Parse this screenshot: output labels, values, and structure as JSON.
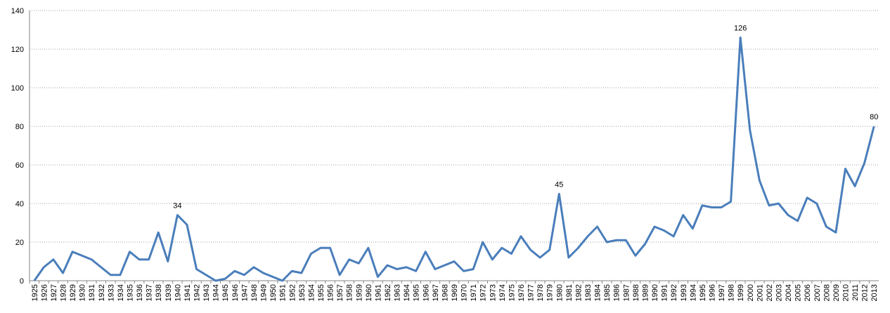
{
  "chart_data": {
    "type": "line",
    "categories": [
      "1925",
      "1926",
      "1927",
      "1928",
      "1929",
      "1930",
      "1931",
      "1932",
      "1933",
      "1934",
      "1935",
      "1936",
      "1937",
      "1938",
      "1939",
      "1940",
      "1941",
      "1942",
      "1943",
      "1944",
      "1945",
      "1946",
      "1947",
      "1948",
      "1949",
      "1950",
      "1951",
      "1952",
      "1953",
      "1954",
      "1955",
      "1956",
      "1957",
      "1958",
      "1959",
      "1960",
      "1961",
      "1962",
      "1963",
      "1964",
      "1965",
      "1966",
      "1967",
      "1968",
      "1969",
      "1970",
      "1971",
      "1972",
      "1973",
      "1974",
      "1975",
      "1976",
      "1977",
      "1978",
      "1979",
      "1980",
      "1981",
      "1982",
      "1983",
      "1984",
      "1985",
      "1986",
      "1987",
      "1988",
      "1989",
      "1990",
      "1991",
      "1992",
      "1993",
      "1994",
      "1995",
      "1996",
      "1997",
      "1998",
      "1999",
      "2000",
      "2001",
      "2002",
      "2003",
      "2004",
      "2005",
      "2006",
      "2007",
      "2008",
      "2009",
      "2010",
      "2011",
      "2012",
      "2013"
    ],
    "values": [
      0,
      7,
      11,
      4,
      15,
      13,
      11,
      7,
      3,
      3,
      15,
      11,
      11,
      25,
      10,
      34,
      29,
      6,
      3,
      0,
      1,
      5,
      3,
      7,
      4,
      2,
      0,
      5,
      4,
      14,
      17,
      17,
      3,
      11,
      9,
      17,
      2,
      8,
      6,
      7,
      5,
      15,
      6,
      8,
      10,
      5,
      6,
      20,
      11,
      17,
      14,
      23,
      16,
      12,
      16,
      45,
      12,
      17,
      23,
      28,
      20,
      21,
      21,
      13,
      19,
      28,
      26,
      23,
      34,
      27,
      39,
      38,
      38,
      41,
      126,
      78,
      52,
      39,
      40,
      34,
      31,
      43,
      40,
      28,
      25,
      58,
      49,
      61,
      80
    ],
    "value_labels": [
      null,
      null,
      null,
      null,
      null,
      null,
      null,
      null,
      null,
      null,
      null,
      null,
      null,
      null,
      null,
      "34",
      null,
      null,
      null,
      null,
      null,
      null,
      null,
      null,
      null,
      null,
      null,
      null,
      null,
      null,
      null,
      null,
      null,
      null,
      null,
      null,
      null,
      null,
      null,
      null,
      null,
      null,
      null,
      null,
      null,
      null,
      null,
      null,
      null,
      null,
      null,
      null,
      null,
      null,
      null,
      "45",
      null,
      null,
      null,
      null,
      null,
      null,
      null,
      null,
      null,
      null,
      null,
      null,
      null,
      null,
      null,
      null,
      null,
      null,
      "126",
      null,
      null,
      null,
      null,
      null,
      null,
      null,
      null,
      null,
      null,
      null,
      null,
      null,
      "80"
    ],
    "color": "#4a7ebb",
    "ylim": [
      0,
      140
    ],
    "yticks": [
      0,
      20,
      40,
      60,
      80,
      100,
      120,
      140
    ],
    "grid": true
  }
}
